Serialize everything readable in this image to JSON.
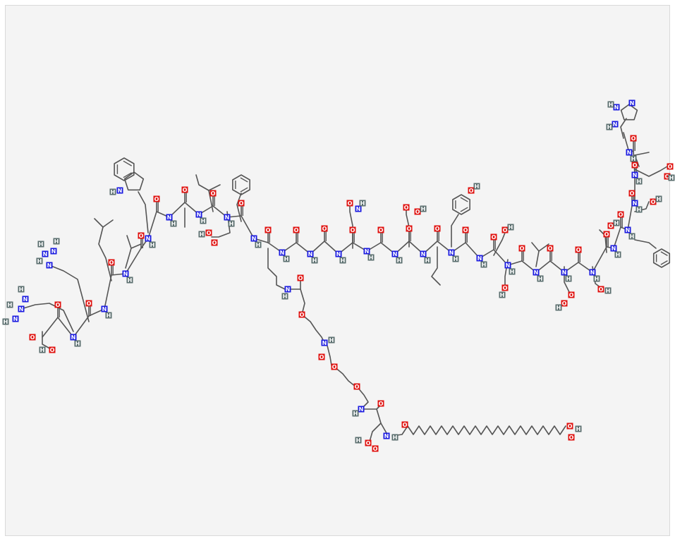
{
  "structure": {
    "title": "",
    "colors": {
      "background": "#f4f4f4",
      "bond": "#555555",
      "oxygen": "#e0120f",
      "nitrogen": "#1a1ae0",
      "hydrogen": "#5a6e6e"
    },
    "atom_labels": {
      "O": "O",
      "H": "H",
      "N": "N"
    }
  }
}
